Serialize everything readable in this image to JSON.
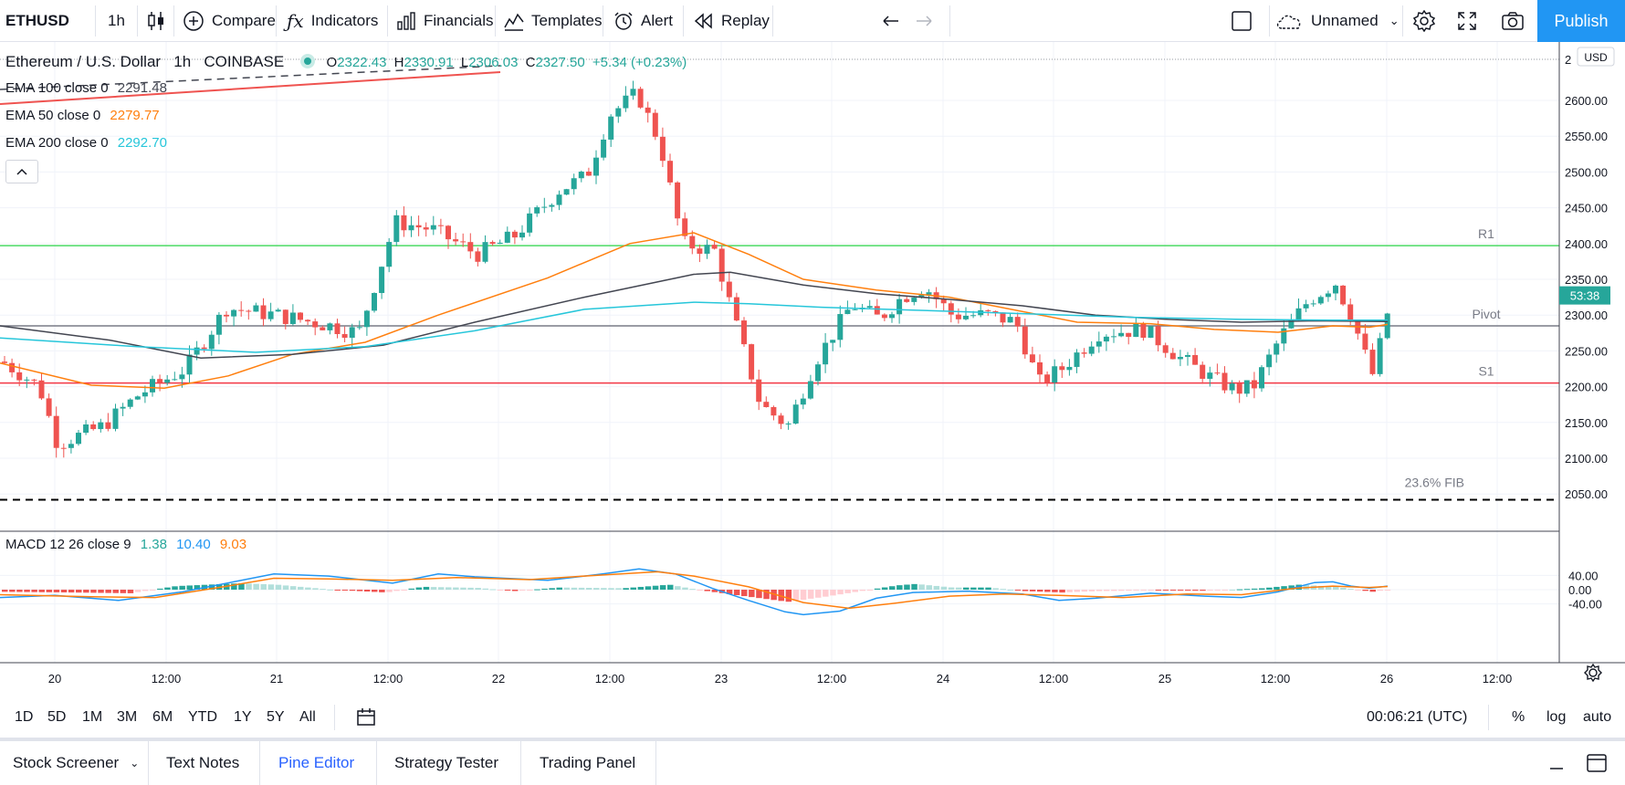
{
  "toolbar": {
    "symbol": "ETHUSD",
    "interval": "1h",
    "compare": "Compare",
    "indicators": "Indicators",
    "financials": "Financials",
    "templates": "Templates",
    "alert": "Alert",
    "replay": "Replay",
    "layout_name": "Unnamed",
    "publish": "Publish"
  },
  "legend": {
    "title": "Ethereum / U.S. Dollar",
    "interval": "1h",
    "exchange": "COINBASE",
    "o_label": "O",
    "open": "2322.43",
    "h_label": "H",
    "high": "2330.91",
    "l_label": "L",
    "low": "2306.03",
    "c_label": "C",
    "close": "2327.50",
    "change": "+5.34 (+0.23%)",
    "ema100_label": "EMA 100 close 0",
    "ema100_value": "2291.48",
    "ema50_label": "EMA 50 close 0",
    "ema50_value": "2279.77",
    "ema200_label": "EMA 200 close 0",
    "ema200_value": "2292.70",
    "macd_label": "MACD 12 26 close 9",
    "macd_hist": "1.38",
    "macd_line": "10.40",
    "macd_signal": "9.03"
  },
  "chart_data": {
    "type": "candlestick",
    "currency": "USD",
    "price_ticks": [
      "2600.00",
      "2550.00",
      "2500.00",
      "2450.00",
      "2400.00",
      "2350.00",
      "2300.00",
      "2250.00",
      "2200.00",
      "2150.00",
      "2100.00",
      "2050.00"
    ],
    "top_tick_partial": "2",
    "countdown": "53:38",
    "last_price": 2327.5,
    "levels": [
      {
        "name": "R1",
        "price": 2397,
        "color": "#4cd964"
      },
      {
        "name": "Pivot",
        "price": 2285,
        "color": "#787b86"
      },
      {
        "name": "S1",
        "price": 2205,
        "color": "#f23645"
      },
      {
        "name": "23.6% FIB",
        "price": 2042,
        "color": "#000000"
      }
    ],
    "macd_ticks": [
      "40.00",
      "0.00",
      "-40.00"
    ],
    "time_labels": [
      "20",
      "12:00",
      "21",
      "12:00",
      "22",
      "12:00",
      "23",
      "12:00",
      "24",
      "12:00",
      "25",
      "12:00",
      "26",
      "12:00"
    ],
    "colors": {
      "up": "#26a69a",
      "down": "#ef5350",
      "ema50": "#ff7f0e",
      "ema100": "#434651",
      "ema200": "#26c6da",
      "macd": "#2196f3",
      "signal": "#ff7f0e"
    }
  },
  "bottom": {
    "ranges": [
      "1D",
      "5D",
      "1M",
      "3M",
      "6M",
      "YTD",
      "1Y",
      "5Y",
      "All"
    ],
    "clock": "00:06:21 (UTC)",
    "percent": "%",
    "log": "log",
    "auto": "auto"
  },
  "tabs": [
    "Stock Screener",
    "Text Notes",
    "Pine Editor",
    "Strategy Tester",
    "Trading Panel"
  ]
}
